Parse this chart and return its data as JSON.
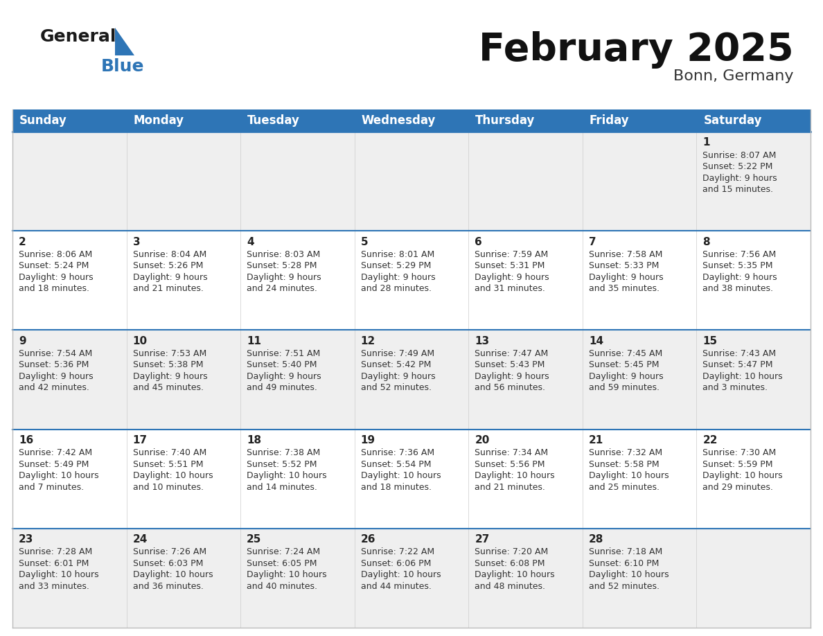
{
  "title": "February 2025",
  "subtitle": "Bonn, Germany",
  "header_bg": "#2E75B6",
  "header_text": "#FFFFFF",
  "day_names": [
    "Sunday",
    "Monday",
    "Tuesday",
    "Wednesday",
    "Thursday",
    "Friday",
    "Saturday"
  ],
  "row_bg_odd": "#EFEFEF",
  "row_bg_even": "#FFFFFF",
  "week_separator_color": "#2E75B6",
  "date_color": "#222222",
  "info_color": "#333333",
  "calendar": [
    [
      {
        "day": null,
        "info": null
      },
      {
        "day": null,
        "info": null
      },
      {
        "day": null,
        "info": null
      },
      {
        "day": null,
        "info": null
      },
      {
        "day": null,
        "info": null
      },
      {
        "day": null,
        "info": null
      },
      {
        "day": 1,
        "info": "Sunrise: 8:07 AM\nSunset: 5:22 PM\nDaylight: 9 hours\nand 15 minutes."
      }
    ],
    [
      {
        "day": 2,
        "info": "Sunrise: 8:06 AM\nSunset: 5:24 PM\nDaylight: 9 hours\nand 18 minutes."
      },
      {
        "day": 3,
        "info": "Sunrise: 8:04 AM\nSunset: 5:26 PM\nDaylight: 9 hours\nand 21 minutes."
      },
      {
        "day": 4,
        "info": "Sunrise: 8:03 AM\nSunset: 5:28 PM\nDaylight: 9 hours\nand 24 minutes."
      },
      {
        "day": 5,
        "info": "Sunrise: 8:01 AM\nSunset: 5:29 PM\nDaylight: 9 hours\nand 28 minutes."
      },
      {
        "day": 6,
        "info": "Sunrise: 7:59 AM\nSunset: 5:31 PM\nDaylight: 9 hours\nand 31 minutes."
      },
      {
        "day": 7,
        "info": "Sunrise: 7:58 AM\nSunset: 5:33 PM\nDaylight: 9 hours\nand 35 minutes."
      },
      {
        "day": 8,
        "info": "Sunrise: 7:56 AM\nSunset: 5:35 PM\nDaylight: 9 hours\nand 38 minutes."
      }
    ],
    [
      {
        "day": 9,
        "info": "Sunrise: 7:54 AM\nSunset: 5:36 PM\nDaylight: 9 hours\nand 42 minutes."
      },
      {
        "day": 10,
        "info": "Sunrise: 7:53 AM\nSunset: 5:38 PM\nDaylight: 9 hours\nand 45 minutes."
      },
      {
        "day": 11,
        "info": "Sunrise: 7:51 AM\nSunset: 5:40 PM\nDaylight: 9 hours\nand 49 minutes."
      },
      {
        "day": 12,
        "info": "Sunrise: 7:49 AM\nSunset: 5:42 PM\nDaylight: 9 hours\nand 52 minutes."
      },
      {
        "day": 13,
        "info": "Sunrise: 7:47 AM\nSunset: 5:43 PM\nDaylight: 9 hours\nand 56 minutes."
      },
      {
        "day": 14,
        "info": "Sunrise: 7:45 AM\nSunset: 5:45 PM\nDaylight: 9 hours\nand 59 minutes."
      },
      {
        "day": 15,
        "info": "Sunrise: 7:43 AM\nSunset: 5:47 PM\nDaylight: 10 hours\nand 3 minutes."
      }
    ],
    [
      {
        "day": 16,
        "info": "Sunrise: 7:42 AM\nSunset: 5:49 PM\nDaylight: 10 hours\nand 7 minutes."
      },
      {
        "day": 17,
        "info": "Sunrise: 7:40 AM\nSunset: 5:51 PM\nDaylight: 10 hours\nand 10 minutes."
      },
      {
        "day": 18,
        "info": "Sunrise: 7:38 AM\nSunset: 5:52 PM\nDaylight: 10 hours\nand 14 minutes."
      },
      {
        "day": 19,
        "info": "Sunrise: 7:36 AM\nSunset: 5:54 PM\nDaylight: 10 hours\nand 18 minutes."
      },
      {
        "day": 20,
        "info": "Sunrise: 7:34 AM\nSunset: 5:56 PM\nDaylight: 10 hours\nand 21 minutes."
      },
      {
        "day": 21,
        "info": "Sunrise: 7:32 AM\nSunset: 5:58 PM\nDaylight: 10 hours\nand 25 minutes."
      },
      {
        "day": 22,
        "info": "Sunrise: 7:30 AM\nSunset: 5:59 PM\nDaylight: 10 hours\nand 29 minutes."
      }
    ],
    [
      {
        "day": 23,
        "info": "Sunrise: 7:28 AM\nSunset: 6:01 PM\nDaylight: 10 hours\nand 33 minutes."
      },
      {
        "day": 24,
        "info": "Sunrise: 7:26 AM\nSunset: 6:03 PM\nDaylight: 10 hours\nand 36 minutes."
      },
      {
        "day": 25,
        "info": "Sunrise: 7:24 AM\nSunset: 6:05 PM\nDaylight: 10 hours\nand 40 minutes."
      },
      {
        "day": 26,
        "info": "Sunrise: 7:22 AM\nSunset: 6:06 PM\nDaylight: 10 hours\nand 44 minutes."
      },
      {
        "day": 27,
        "info": "Sunrise: 7:20 AM\nSunset: 6:08 PM\nDaylight: 10 hours\nand 48 minutes."
      },
      {
        "day": 28,
        "info": "Sunrise: 7:18 AM\nSunset: 6:10 PM\nDaylight: 10 hours\nand 52 minutes."
      },
      {
        "day": null,
        "info": null
      }
    ]
  ],
  "logo_general_color": "#1a1a1a",
  "logo_blue_color": "#2E75B6",
  "logo_triangle_color": "#2E75B6",
  "title_fontsize": 40,
  "subtitle_fontsize": 16,
  "header_fontsize": 12,
  "day_number_fontsize": 11,
  "info_fontsize": 9
}
